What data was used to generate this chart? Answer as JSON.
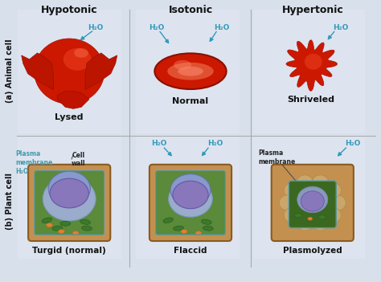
{
  "bg_color": "#d8e0ec",
  "col_titles": [
    "Hypotonic",
    "Isotonic",
    "Hypertonic"
  ],
  "row_labels_a": "(a) Animal cell",
  "row_labels_b": "(b) Plant cell",
  "animal_labels": [
    "Lysed",
    "Normal",
    "Shriveled"
  ],
  "plant_labels": [
    "Turgid (normal)",
    "Flaccid",
    "Plasmolyzed"
  ],
  "h2o_label": "H₂O",
  "cell_wall_label": "Cell\nwall",
  "plasma_membrane_label": "Plasma\nmembrane\nH₂O",
  "plasma_membrane_label3": "Plasma\nmembrane",
  "h2o_color": "#3399bb",
  "arrow_color": "#3399bb",
  "title_color": "#111111",
  "label_color": "#111111",
  "row_label_color": "#111111",
  "animal_red": "#cc1100",
  "divider_color": "#aaaaaa",
  "cell_bg": "#e2e8f2",
  "brown_wall": "#c49050",
  "brown_inner": "#d4a860",
  "green_cyto": "#5a8a3a",
  "blue_vacuole": "#7090b8",
  "purple_nuc": "#8877bb",
  "blue_nuc": "#6688cc",
  "teal_membrane": "#4499aa"
}
